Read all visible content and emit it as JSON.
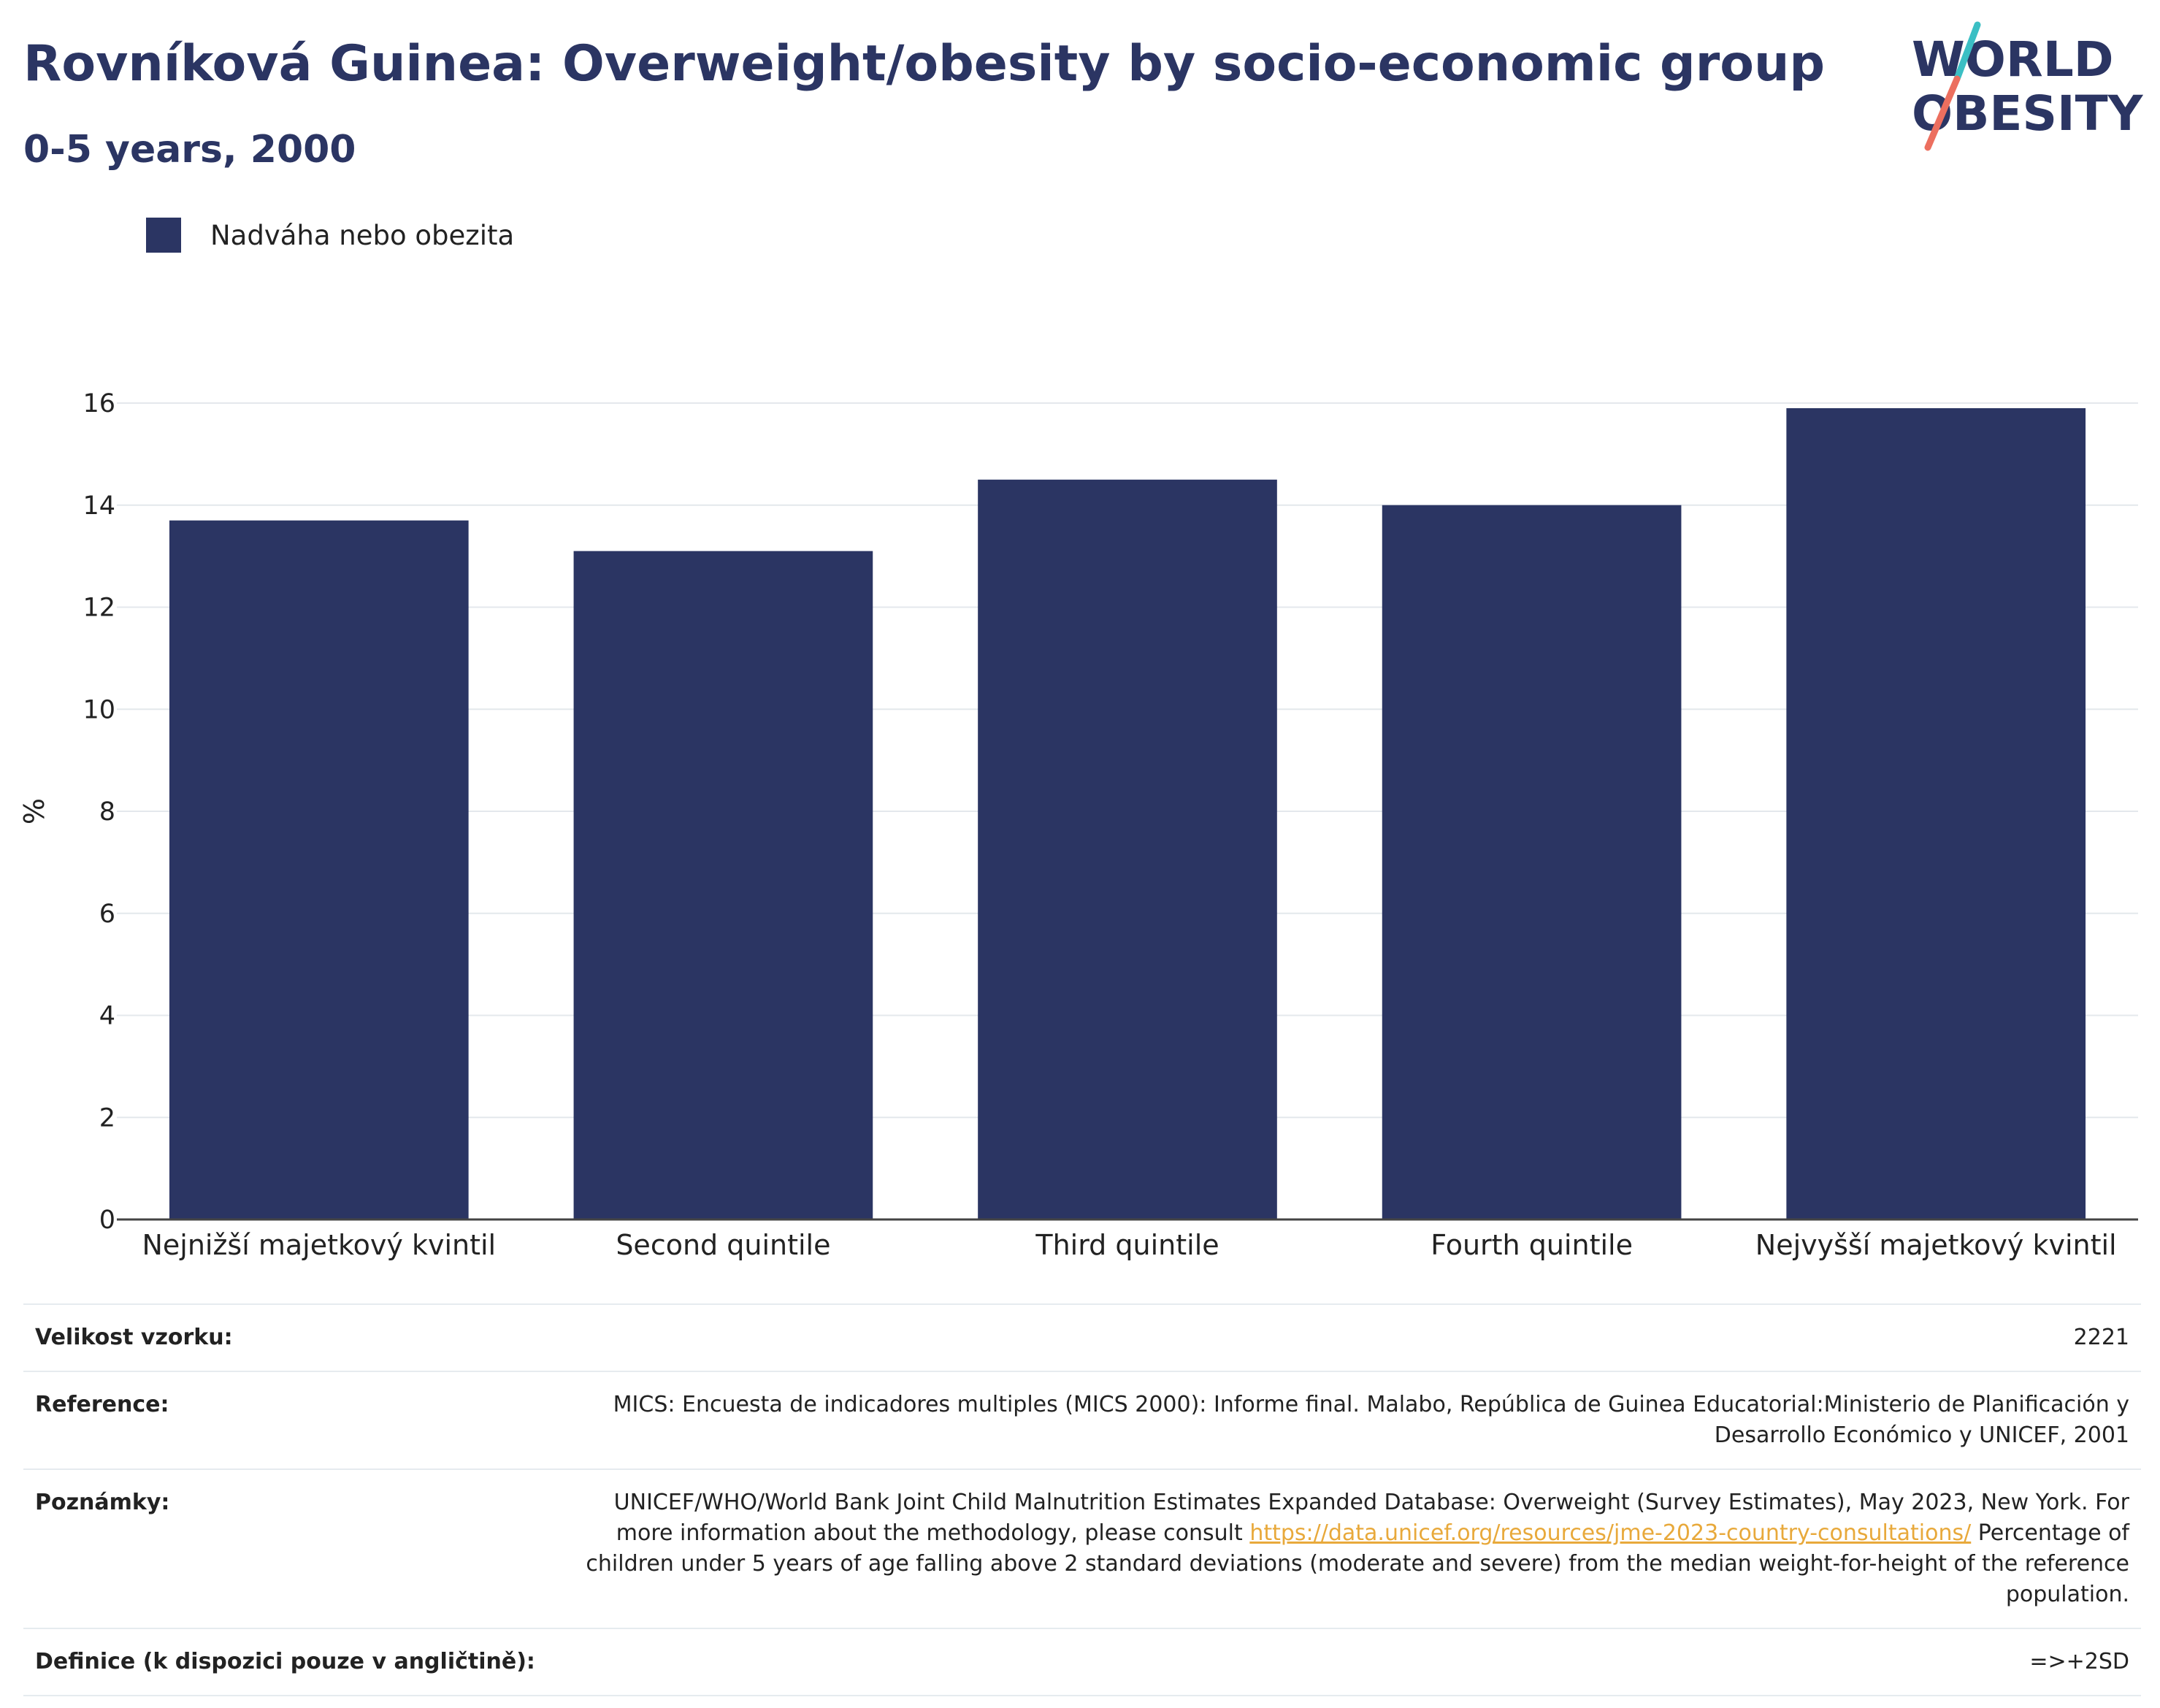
{
  "header": {
    "title": "Rovníková Guinea: Overweight/obesity by socio-economic group",
    "subtitle": "0-5 years, 2000"
  },
  "logo": {
    "line1": "WORLD",
    "line2": "OBESITY",
    "accent_teal": "#3bbfc4",
    "accent_coral": "#ec6f5f"
  },
  "legend": {
    "label": "Nadváha nebo obezita",
    "color": "#2b3563"
  },
  "chart_data": {
    "type": "bar",
    "categories": [
      "Nejnižší majetkový kvintil",
      "Second quintile",
      "Third quintile",
      "Fourth quintile",
      "Nejvyšší majetkový kvintil"
    ],
    "series": [
      {
        "name": "Nadváha nebo obezita",
        "values": [
          13.7,
          13.1,
          14.5,
          14.0,
          15.9
        ],
        "color": "#2b3563"
      }
    ],
    "ylabel": "%",
    "xlabel": "",
    "ylim": [
      0,
      16
    ],
    "yticks": [
      0,
      2,
      4,
      6,
      8,
      10,
      12,
      14,
      16
    ],
    "grid": true
  },
  "meta": {
    "sample_size_label": "Velikost vzorku:",
    "sample_size_value": "2221",
    "reference_label": "Reference:",
    "reference_value": "MICS: Encuesta de indicadores multiples (MICS 2000): Informe final. Malabo, República de Guinea Educatorial:Ministerio de Planificación y Desarrollo Económico y UNICEF, 2001",
    "notes_label": "Poznámky:",
    "notes_text_1": "UNICEF/WHO/World Bank Joint Child Malnutrition Estimates Expanded Database: Overweight (Survey Estimates), May 2023, New York. For more information about the methodology, please consult",
    "notes_link": "https://data.unicef.org/resources/jme-2023-country-consultations/",
    "notes_text_2": "Percentage of children under 5 years of age falling above 2 standard deviations (moderate and severe) from the median weight-for-height of the reference population.",
    "definition_label": "Definice (k dispozici pouze v angličtině):",
    "definition_value": "=>+2SD"
  }
}
